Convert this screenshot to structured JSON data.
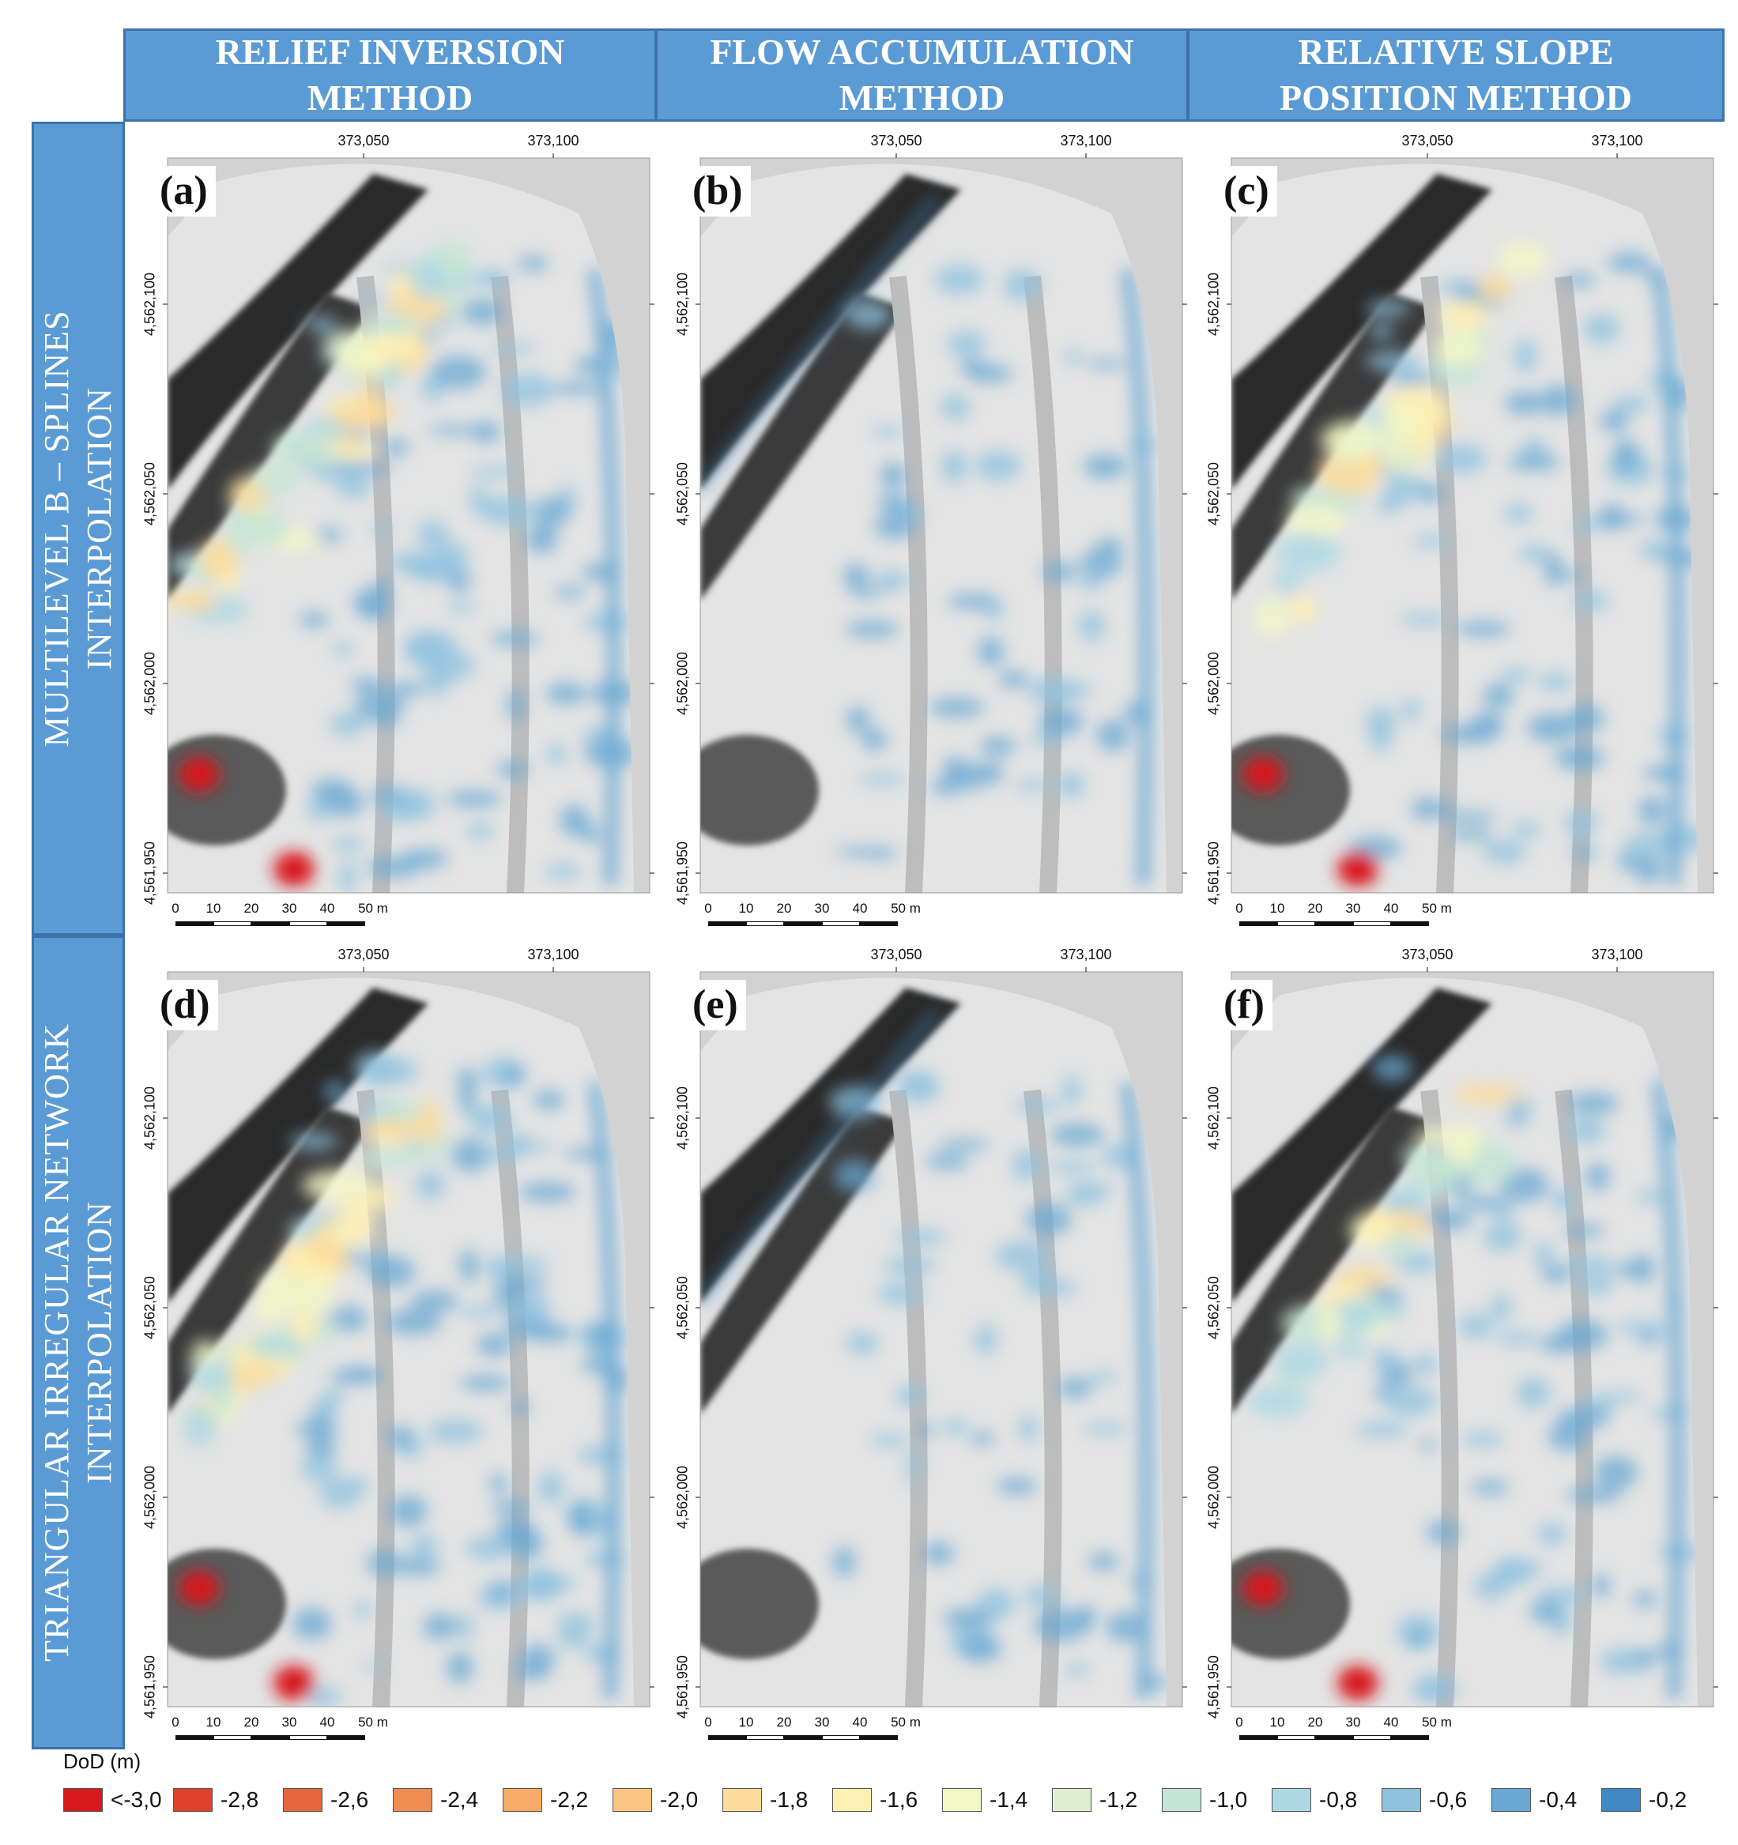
{
  "columns": [
    {
      "line1": "RELIEF INVERSION",
      "line2": "METHOD"
    },
    {
      "line1": "FLOW ACCUMULATION",
      "line2": "METHOD"
    },
    {
      "line1": "RELATIVE SLOPE",
      "line2": "POSITION METHOD"
    }
  ],
  "rows": [
    {
      "line1": "MULTILEVEL B – SPLINES",
      "line2": "INTERPOLATION"
    },
    {
      "line1": "TRIANGULAR IRREGULAR NETWORK",
      "line2": "INTERPOLATION"
    }
  ],
  "panels": [
    {
      "label": "(a)"
    },
    {
      "label": "(b)"
    },
    {
      "label": "(c)"
    },
    {
      "label": "(d)"
    },
    {
      "label": "(e)"
    },
    {
      "label": "(f)"
    }
  ],
  "easting_ticks": [
    "373,050",
    "373,100"
  ],
  "northing_ticks": [
    "4,562,100",
    "4,562,050",
    "4,562,000",
    "4,561,950"
  ],
  "scalebar": {
    "labels": [
      "0",
      "10",
      "20",
      "30",
      "40"
    ],
    "end_label": "50 m"
  },
  "legend": {
    "title": "DoD (m)",
    "items": [
      {
        "label": "<-3,0",
        "color": "#d7191c"
      },
      {
        "label": "-2,8",
        "color": "#e0412b"
      },
      {
        "label": "-2,6",
        "color": "#e8663d"
      },
      {
        "label": "-2,4",
        "color": "#f08c50"
      },
      {
        "label": "-2,2",
        "color": "#f7ab66"
      },
      {
        "label": "-2,0",
        "color": "#fbc582"
      },
      {
        "label": "-1,8",
        "color": "#fddc9c"
      },
      {
        "label": "-1,6",
        "color": "#feefb3"
      },
      {
        "label": "-1,4",
        "color": "#f2f7c6"
      },
      {
        "label": "-1,2",
        "color": "#ddefce"
      },
      {
        "label": "-1,0",
        "color": "#c6e5d6"
      },
      {
        "label": "-0,8",
        "color": "#aed8e3"
      },
      {
        "label": "-0,6",
        "color": "#8fc2df"
      },
      {
        "label": "-0,4",
        "color": "#6aa8d3"
      },
      {
        "label": "-0,2",
        "color": "#3f88c5"
      }
    ]
  }
}
